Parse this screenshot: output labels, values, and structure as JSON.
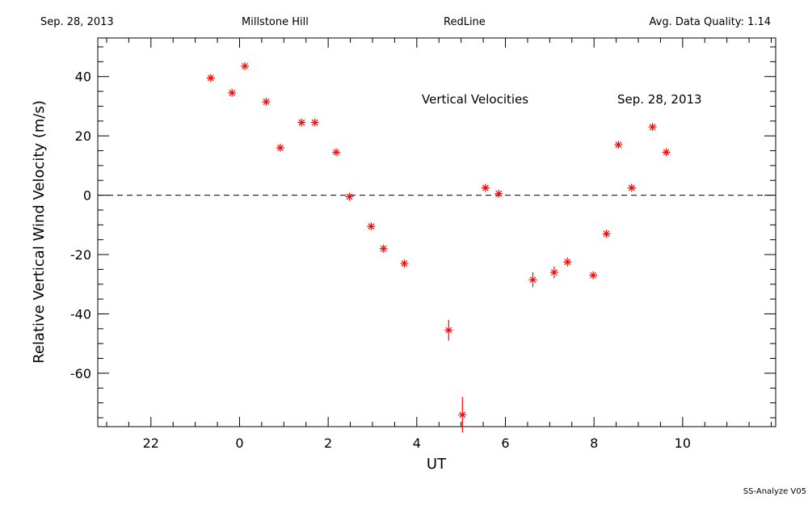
{
  "header": {
    "date": "Sep. 28, 2013",
    "site": "Millstone Hill",
    "line": "RedLine",
    "quality": "Avg. Data Quality: 1.14"
  },
  "footer": {
    "version": "SS-Analyze V05"
  },
  "chart_data": {
    "type": "scatter",
    "xlabel": "UT",
    "ylabel": "Relative Vertical Wind Velocity (m/s)",
    "annotations": [
      "Vertical Velocities",
      "Sep. 28, 2013"
    ],
    "xlim": [
      -3.2,
      12.1
    ],
    "ylim": [
      -78,
      53
    ],
    "x_ticks": [
      22,
      0,
      2,
      4,
      6,
      8,
      10
    ],
    "x_tick_values": [
      -2,
      0,
      2,
      4,
      6,
      8,
      10
    ],
    "y_ticks": [
      40,
      20,
      0,
      -20,
      -40,
      -60
    ],
    "reference_line": {
      "y": 0,
      "style": "dashed"
    },
    "marker": "asterisk",
    "marker_color": "#ff0000",
    "grid": false,
    "series": [
      {
        "points": [
          {
            "x": -0.65,
            "y": 39.5,
            "err": 1
          },
          {
            "x": -0.17,
            "y": 34.5,
            "err": 1
          },
          {
            "x": 0.12,
            "y": 43.5,
            "err": 1
          },
          {
            "x": 0.6,
            "y": 31.5,
            "err": 1
          },
          {
            "x": 0.92,
            "y": 16,
            "err": 1
          },
          {
            "x": 1.4,
            "y": 24.5,
            "err": 1
          },
          {
            "x": 1.7,
            "y": 24.5,
            "err": 1
          },
          {
            "x": 2.18,
            "y": 14.5,
            "err": 1
          },
          {
            "x": 2.48,
            "y": -0.5,
            "err": 1
          },
          {
            "x": 2.97,
            "y": -10.5,
            "err": 1
          },
          {
            "x": 3.25,
            "y": -18,
            "err": 1
          },
          {
            "x": 3.72,
            "y": -23,
            "err": 1
          },
          {
            "x": 4.72,
            "y": -45.5,
            "err": 3.5
          },
          {
            "x": 5.03,
            "y": -74,
            "err": 6
          },
          {
            "x": 5.55,
            "y": 2.5,
            "err": 1
          },
          {
            "x": 5.85,
            "y": 0.5,
            "err": 1
          },
          {
            "x": 6.62,
            "y": -28.5,
            "err": 2.5
          },
          {
            "x": 7.1,
            "y": -26,
            "err": 2
          },
          {
            "x": 7.4,
            "y": -22.5,
            "err": 1.5
          },
          {
            "x": 7.98,
            "y": -27,
            "err": 1
          },
          {
            "x": 8.28,
            "y": -13,
            "err": 1
          },
          {
            "x": 8.55,
            "y": 17,
            "err": 1
          },
          {
            "x": 8.85,
            "y": 2.5,
            "err": 1
          },
          {
            "x": 9.32,
            "y": 23,
            "err": 1
          },
          {
            "x": 9.63,
            "y": 14.5,
            "err": 1
          }
        ]
      }
    ]
  }
}
